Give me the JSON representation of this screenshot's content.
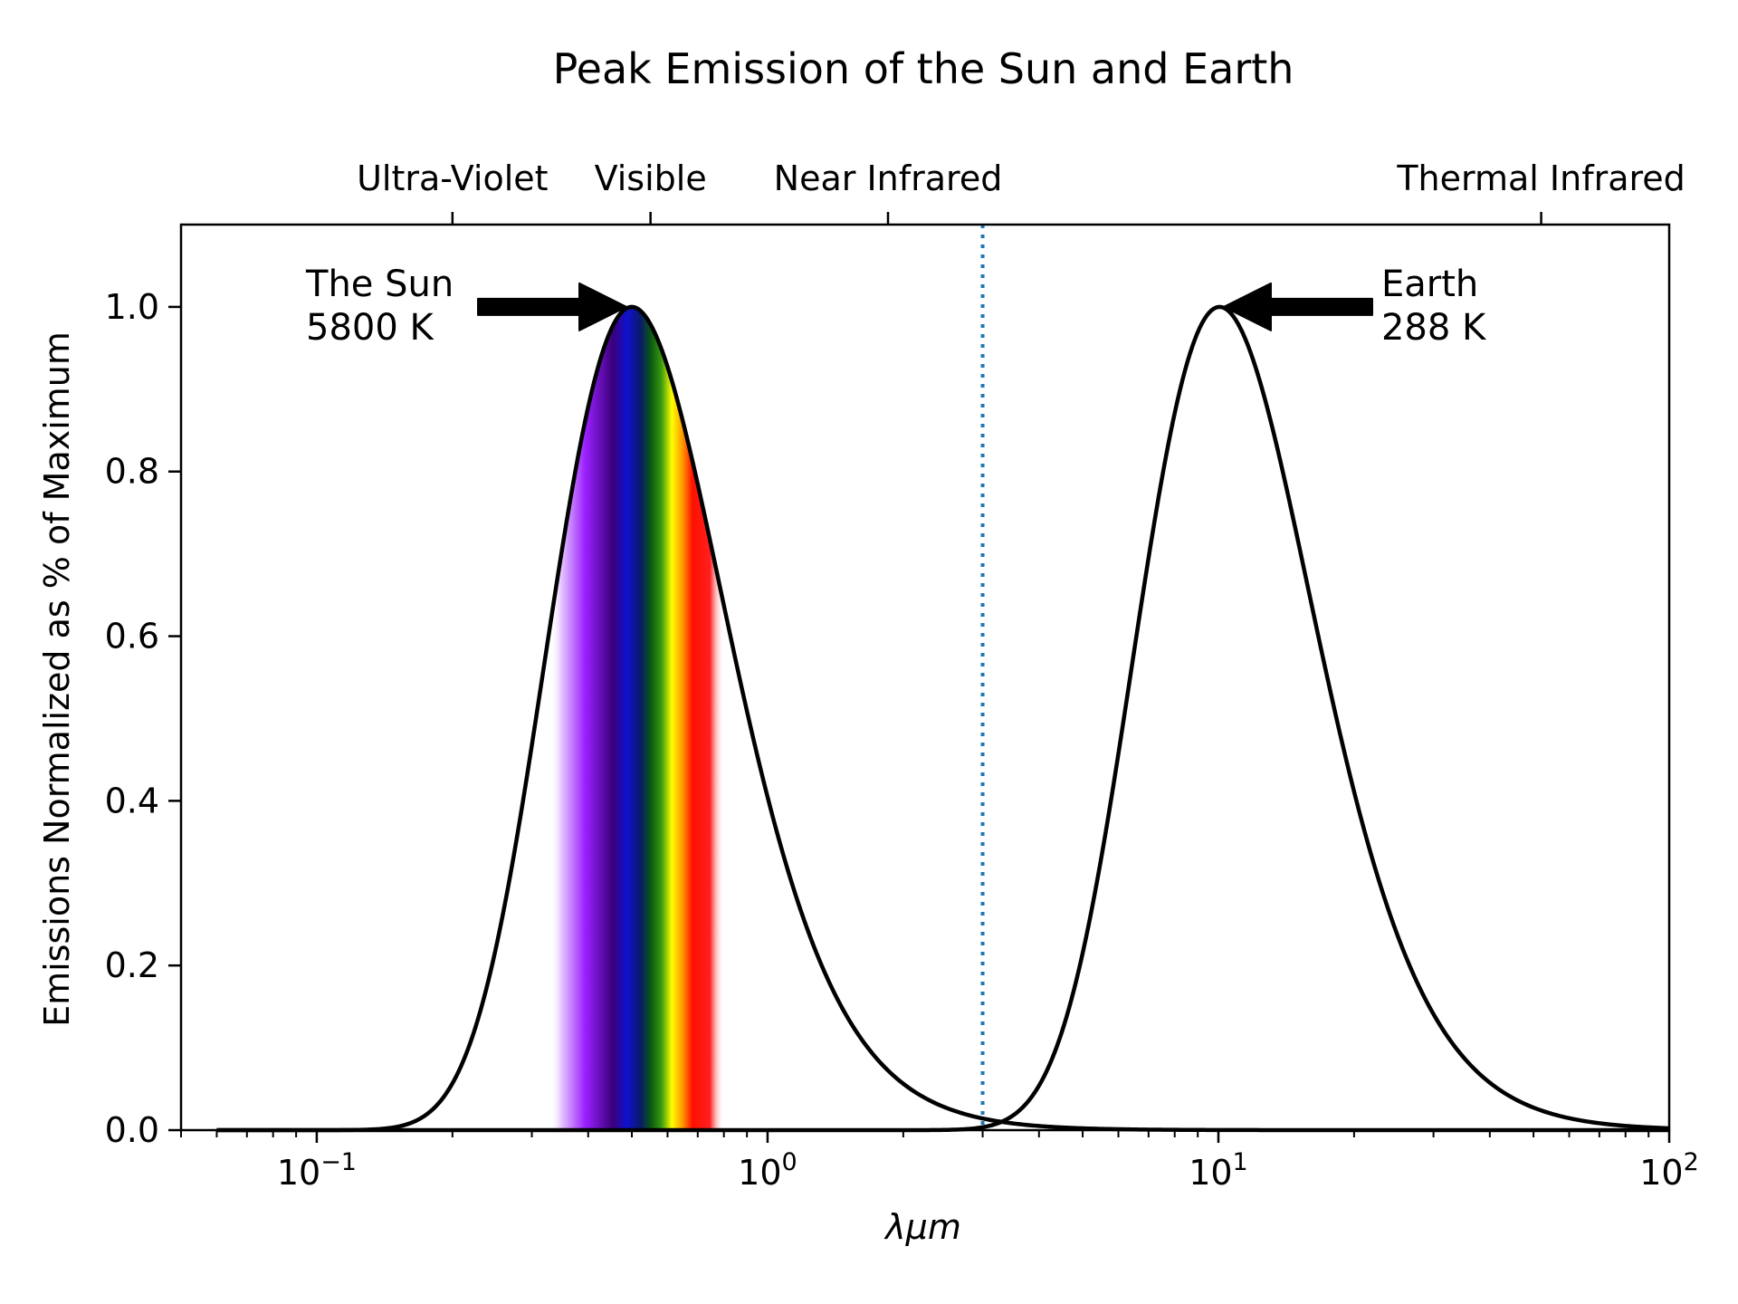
{
  "chart_data": {
    "type": "line",
    "title": "Peak Emission of the Sun and Earth",
    "xlabel": "λμm",
    "ylabel": "Emissions Normalized as % of Maximum",
    "xscale": "log",
    "xlim": [
      0.05,
      100
    ],
    "ylim": [
      0,
      1.1
    ],
    "x_ticks": [
      {
        "value": 0.1,
        "base": "10",
        "exp": "−1"
      },
      {
        "value": 1,
        "base": "10",
        "exp": "0"
      },
      {
        "value": 10,
        "base": "10",
        "exp": "1"
      },
      {
        "value": 100,
        "base": "10",
        "exp": "2"
      }
    ],
    "y_ticks": [
      {
        "value": 0.0,
        "label": "0.0"
      },
      {
        "value": 0.2,
        "label": "0.2"
      },
      {
        "value": 0.4,
        "label": "0.4"
      },
      {
        "value": 0.6,
        "label": "0.6"
      },
      {
        "value": 0.8,
        "label": "0.8"
      },
      {
        "value": 1.0,
        "label": "1.0"
      }
    ],
    "top_axis_bands": [
      {
        "label": "Ultra-Violet",
        "value": 0.2
      },
      {
        "label": "Visible",
        "value": 0.55
      },
      {
        "label": "Near Infrared",
        "value": 1.85
      },
      {
        "label": "Thermal Infrared",
        "value": 52
      }
    ],
    "divider_line": {
      "x": 3.0,
      "color": "#1f77b4",
      "style": "dotted"
    },
    "visible_spectrum_band": {
      "xmin": 0.33,
      "xmax": 0.8
    },
    "series": [
      {
        "name": "The Sun",
        "temperature_K": 5800,
        "color": "#000000"
      },
      {
        "name": "Earth",
        "temperature_K": 288,
        "color": "#000000"
      }
    ],
    "annotations": [
      {
        "line1": "The Sun",
        "line2": "5800 K",
        "peak_x": 0.5,
        "peak_y": 1.0,
        "arrow_dir": "right"
      },
      {
        "line1": "Earth",
        "line2": "288 K",
        "peak_x": 10,
        "peak_y": 1.0,
        "arrow_dir": "left"
      }
    ],
    "grid": false,
    "legend": "none"
  }
}
